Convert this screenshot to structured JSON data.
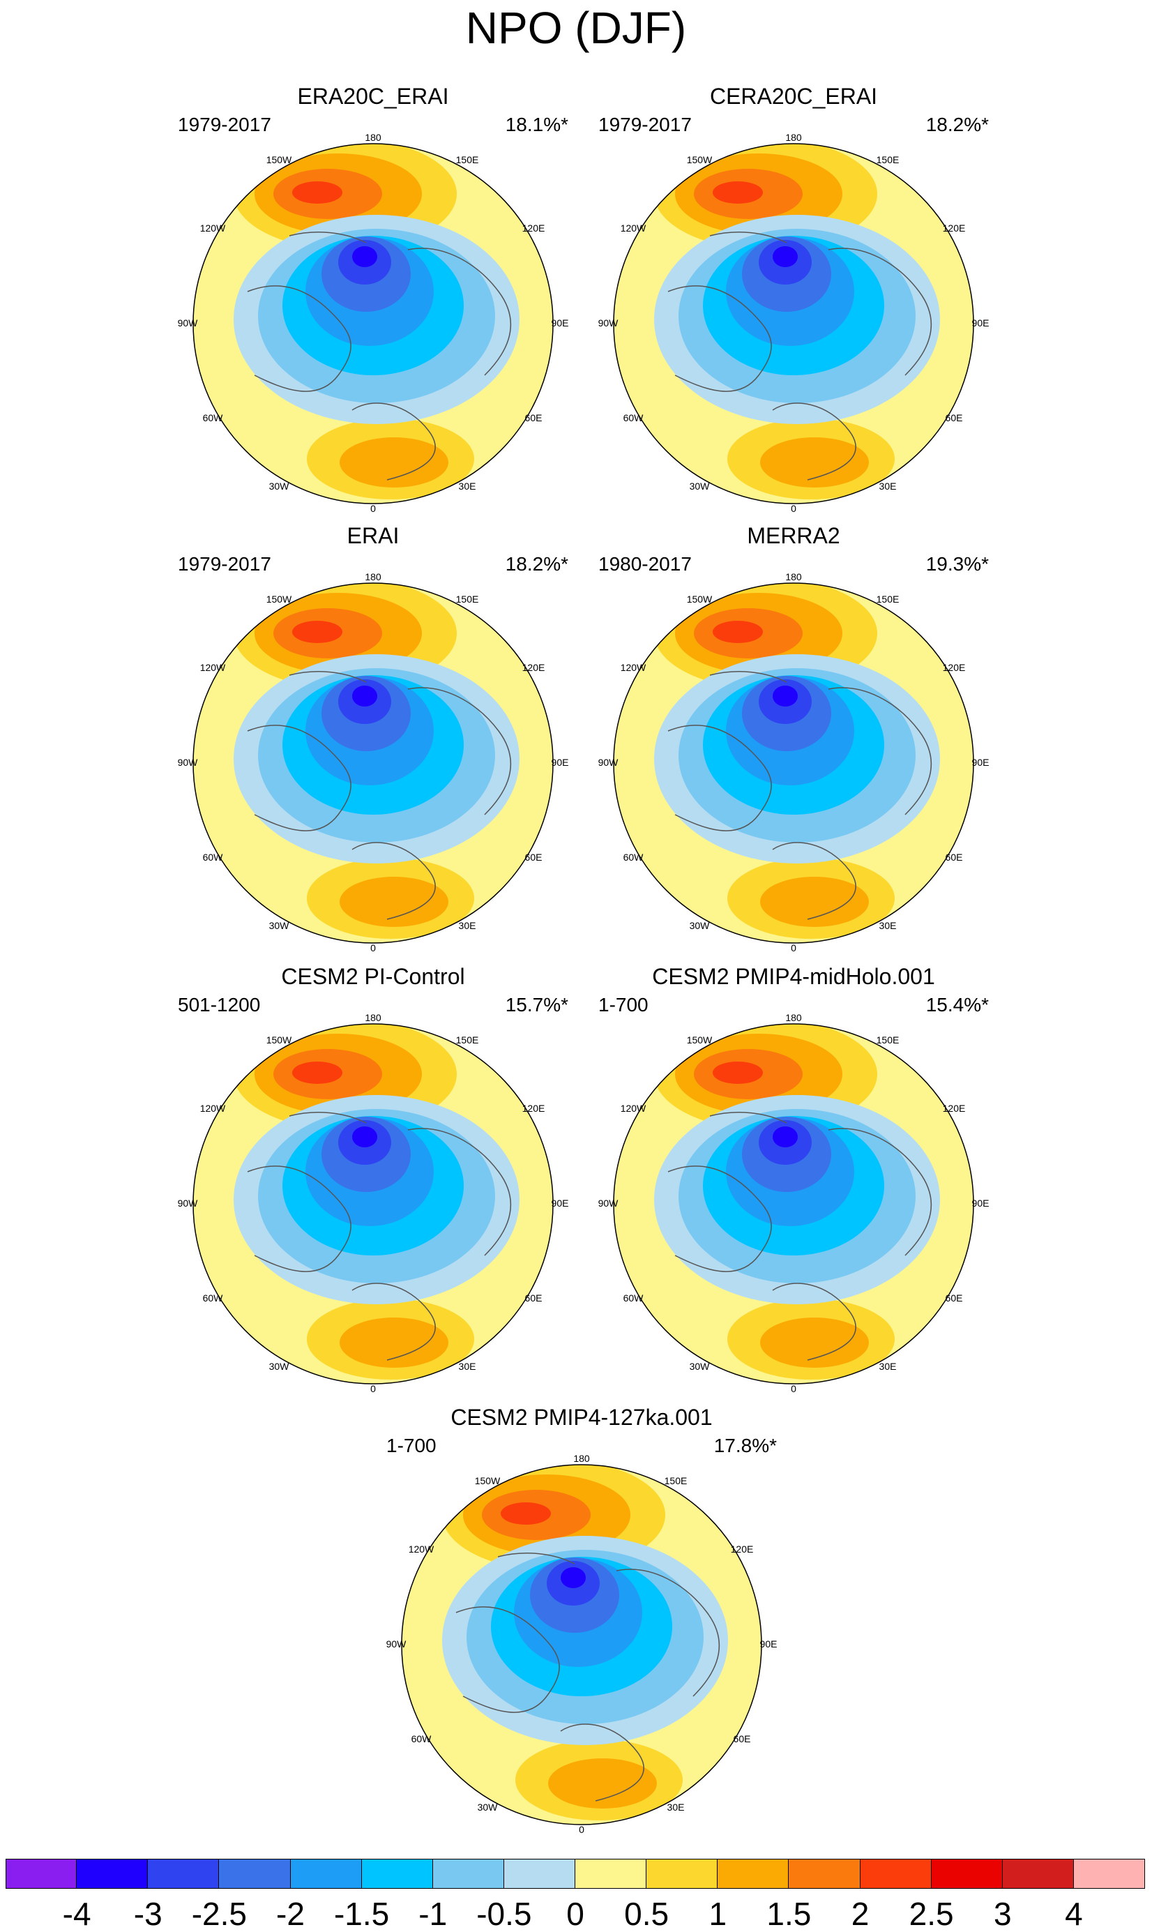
{
  "title": "NPO (DJF)",
  "panels": [
    {
      "title": "ERA20C_ERAI",
      "period": "1979-2017",
      "variance": "18.1%*"
    },
    {
      "title": "CERA20C_ERAI",
      "period": "1979-2017",
      "variance": "18.2%*"
    },
    {
      "title": "ERAI",
      "period": "1979-2017",
      "variance": "18.2%*"
    },
    {
      "title": "MERRA2",
      "period": "1980-2017",
      "variance": "19.3%*"
    },
    {
      "title": "CESM2 PI-Control",
      "period": "501-1200",
      "variance": "15.7%*"
    },
    {
      "title": "CESM2 PMIP4-midHolo.001",
      "period": "1-700",
      "variance": "15.4%*"
    },
    {
      "title": "CESM2 PMIP4-127ka.001",
      "period": "1-700",
      "variance": "17.8%*"
    }
  ],
  "lon_labels": {
    "l180": "180",
    "l150e": "150E",
    "l120e": "120E",
    "l90e": "90E",
    "l60e": "60E",
    "l30e": "30E",
    "l0": "0",
    "l30w": "30W",
    "l60w": "60W",
    "l90w": "90W",
    "l120w": "120W",
    "l150w": "150W"
  },
  "colorbar": {
    "colors": [
      "#8a1df0",
      "#1f00ff",
      "#2f44f0",
      "#3a72ea",
      "#1e9df7",
      "#00c4ff",
      "#79c8f2",
      "#b6dcf2",
      "#fdf68e",
      "#fcd72d",
      "#fbaa04",
      "#fb7a0d",
      "#fb3d0b",
      "#ea0200",
      "#d21e1c",
      "#ffb2b2"
    ],
    "ticks": [
      "-4",
      "-3",
      "-2.5",
      "-2",
      "-1.5",
      "-1",
      "-0.5",
      "0",
      "0.5",
      "1",
      "1.5",
      "2",
      "2.5",
      "3",
      "4"
    ]
  },
  "chart_data": {
    "type": "contour-map",
    "title": "NPO (DJF)",
    "projection": "north polar stereographic",
    "levels": [
      -4,
      -3,
      -2.5,
      -2,
      -1.5,
      -1,
      -0.5,
      0,
      0.5,
      1,
      1.5,
      2,
      2.5,
      3,
      4
    ],
    "panels": [
      "ERA20C_ERAI",
      "CERA20C_ERAI",
      "ERAI",
      "MERRA2",
      "CESM2 PI-Control",
      "CESM2 PMIP4-midHolo.001",
      "CESM2 PMIP4-127ka.001"
    ]
  }
}
